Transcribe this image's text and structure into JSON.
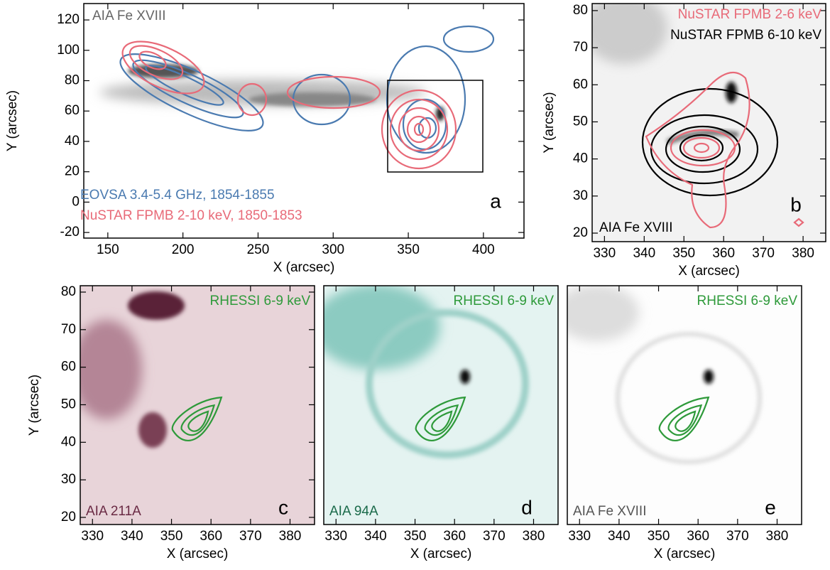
{
  "panels": [
    {
      "label": "a",
      "xlabel": "X (arcsec)",
      "ylabel": "Y (arcsec)",
      "xlim": [
        134,
        427
      ],
      "ylim": [
        -23.7,
        130.8
      ],
      "xticks": [
        150,
        200,
        250,
        300,
        350,
        400
      ],
      "yticks": [
        -20,
        0,
        20,
        40,
        60,
        80,
        100,
        120
      ],
      "annotations": [
        "AIA Fe XVIII",
        "EOVSA 3.4-5.4 GHz, 1854-1855",
        "NuSTAR FPMB 2-10 keV, 1850-1853"
      ]
    },
    {
      "label": "b",
      "xlabel": "X (arcsec)",
      "ylabel": "Y (arcsec)",
      "xlim": [
        326.9,
        385.7
      ],
      "ylim": [
        17.7,
        81.9
      ],
      "xticks": [
        330,
        340,
        350,
        360,
        370,
        380
      ],
      "yticks": [
        20,
        30,
        40,
        50,
        60,
        70,
        80
      ],
      "annotations": [
        "NuSTAR FPMB 2-6 keV",
        "NuSTAR FPMB 6-10 keV",
        "AIA Fe XVIII"
      ]
    },
    {
      "label": "c",
      "xlabel": "X (arcsec)",
      "ylabel": "Y (arcsec)",
      "xlim": [
        326.9,
        386.2
      ],
      "ylim": [
        18.1,
        81.7
      ],
      "xticks": [
        330,
        340,
        350,
        360,
        370,
        380
      ],
      "yticks": [
        20,
        30,
        40,
        50,
        60,
        70,
        80
      ],
      "annotations": [
        "RHESSI 6-9 keV",
        "AIA 211A"
      ]
    },
    {
      "label": "d",
      "xlabel": "X (arcsec)",
      "xlim": [
        326.9,
        386.2
      ],
      "ylim": [
        18.1,
        81.7
      ],
      "xticks": [
        330,
        340,
        350,
        360,
        370,
        380
      ],
      "annotations": [
        "RHESSI 6-9 keV",
        "AIA 94A"
      ]
    },
    {
      "label": "e",
      "xlabel": "X (arcsec)",
      "xlim": [
        326.9,
        386.2
      ],
      "ylim": [
        18.1,
        81.7
      ],
      "xticks": [
        330,
        340,
        350,
        360,
        370,
        380
      ],
      "annotations": [
        "RHESSI 6-9 keV",
        "AIA Fe XVIII"
      ]
    }
  ]
}
